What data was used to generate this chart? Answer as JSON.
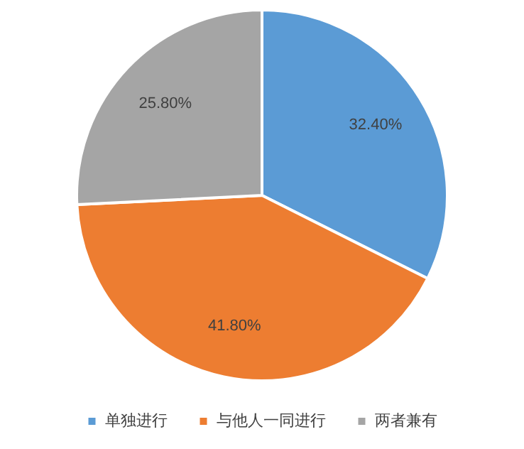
{
  "chart_data": {
    "type": "pie",
    "categories": [
      "单独进行",
      "与他人一同进行",
      "两者兼有"
    ],
    "values": [
      32.4,
      41.8,
      25.8
    ],
    "colors": [
      "#5b9bd5",
      "#ed7d31",
      "#a5a5a5"
    ],
    "value_labels": [
      "32.40%",
      "41.80%",
      "25.80%"
    ],
    "legend": "bottom"
  }
}
